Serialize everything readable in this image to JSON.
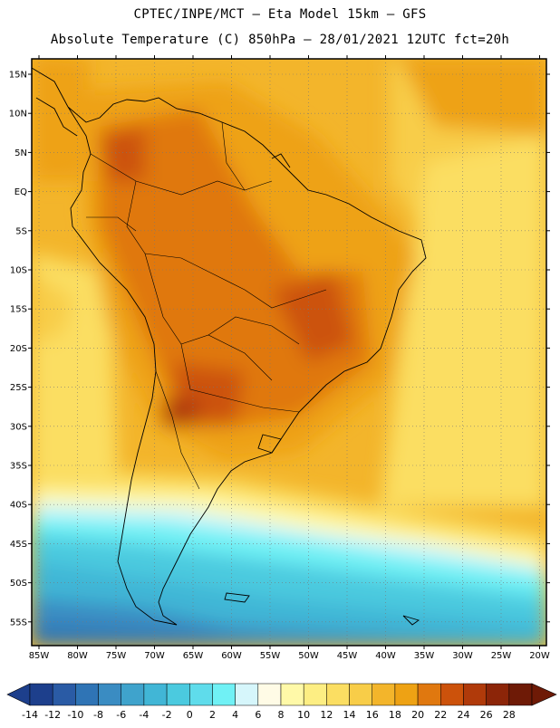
{
  "header": {
    "line1": "CPTEC/INPE/MCT –  Eta Model 15km – GFS",
    "line2": "Absolute Temperature (C) 850hPa – 28/01/2021 12UTC fct=20h"
  },
  "map": {
    "lat_labels": [
      "15N",
      "10N",
      "5N",
      "EQ",
      "5S",
      "10S",
      "15S",
      "20S",
      "25S",
      "30S",
      "35S",
      "40S",
      "45S",
      "50S",
      "55S"
    ],
    "lon_labels": [
      "85W",
      "80W",
      "75W",
      "70W",
      "65W",
      "60W",
      "55W",
      "50W",
      "45W",
      "40W",
      "35W",
      "30W",
      "25W",
      "20W"
    ]
  },
  "colorbar": {
    "labels": [
      "-14",
      "-12",
      "-10",
      "-8",
      "-6",
      "-4",
      "-2",
      "0",
      "2",
      "4",
      "6",
      "8",
      "10",
      "12",
      "14",
      "16",
      "18",
      "20",
      "22",
      "24",
      "26",
      "28"
    ],
    "colors": [
      "#1d3f8c",
      "#2a5ba5",
      "#2f74b5",
      "#3a8cc2",
      "#3fa3cc",
      "#41b6d6",
      "#4bcadf",
      "#5fdceb",
      "#70f1f5",
      "#d6f6fb",
      "#fffbe6",
      "#fff9a8",
      "#fdee83",
      "#fbde62",
      "#f8cd48",
      "#f3b52b",
      "#eea214",
      "#e0780f",
      "#cc520b",
      "#b03a0a",
      "#8c2508",
      "#6e1a06"
    ],
    "left_cap_color": "#1d3f8c",
    "right_cap_color": "#6e1a06"
  }
}
